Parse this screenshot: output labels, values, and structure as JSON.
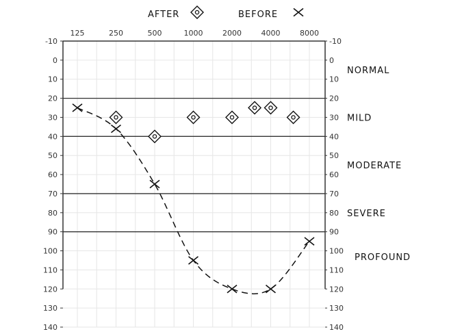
{
  "chart_data": {
    "type": "scatter",
    "title": "",
    "legend": {
      "placement": "top-center",
      "entries": [
        {
          "label": "AFTER",
          "marker": "diamond-icon"
        },
        {
          "label": "BEFORE",
          "marker": "x-icon"
        }
      ]
    },
    "x_ticks": [
      "125",
      "250",
      "500",
      "1000",
      "2000",
      "4000",
      "8000"
    ],
    "x_scale": "log2",
    "xlim": [
      100,
      9500
    ],
    "y_ticks": [
      -10,
      0,
      10,
      20,
      30,
      40,
      50,
      60,
      70,
      80,
      90,
      100,
      110,
      120,
      130,
      140
    ],
    "ylim": [
      -10,
      140
    ],
    "y_inverted": true,
    "grid": true,
    "band_lines": [
      20,
      40,
      70,
      90
    ],
    "bands": [
      {
        "label": "NORMAL",
        "center": 5
      },
      {
        "label": "MILD",
        "center": 30
      },
      {
        "label": "MODERATE",
        "center": 55
      },
      {
        "label": "SEVERE",
        "center": 80
      },
      {
        "label": "PROFOUND",
        "center": 103
      }
    ],
    "series": [
      {
        "name": "BEFORE",
        "marker": "x",
        "line": "dashed",
        "x": [
          125,
          250,
          500,
          1000,
          2000,
          4000,
          8000
        ],
        "y": [
          25,
          36,
          65,
          105,
          120,
          120,
          95
        ]
      },
      {
        "name": "AFTER",
        "marker": "diamond",
        "line": "none",
        "x": [
          250,
          500,
          1000,
          2000,
          3000,
          4000,
          6000
        ],
        "y": [
          30,
          40,
          30,
          30,
          25,
          25,
          30
        ]
      }
    ],
    "colors": {
      "ink": "#111111",
      "grid": "#e6e6e6",
      "axis": "#333333"
    }
  }
}
